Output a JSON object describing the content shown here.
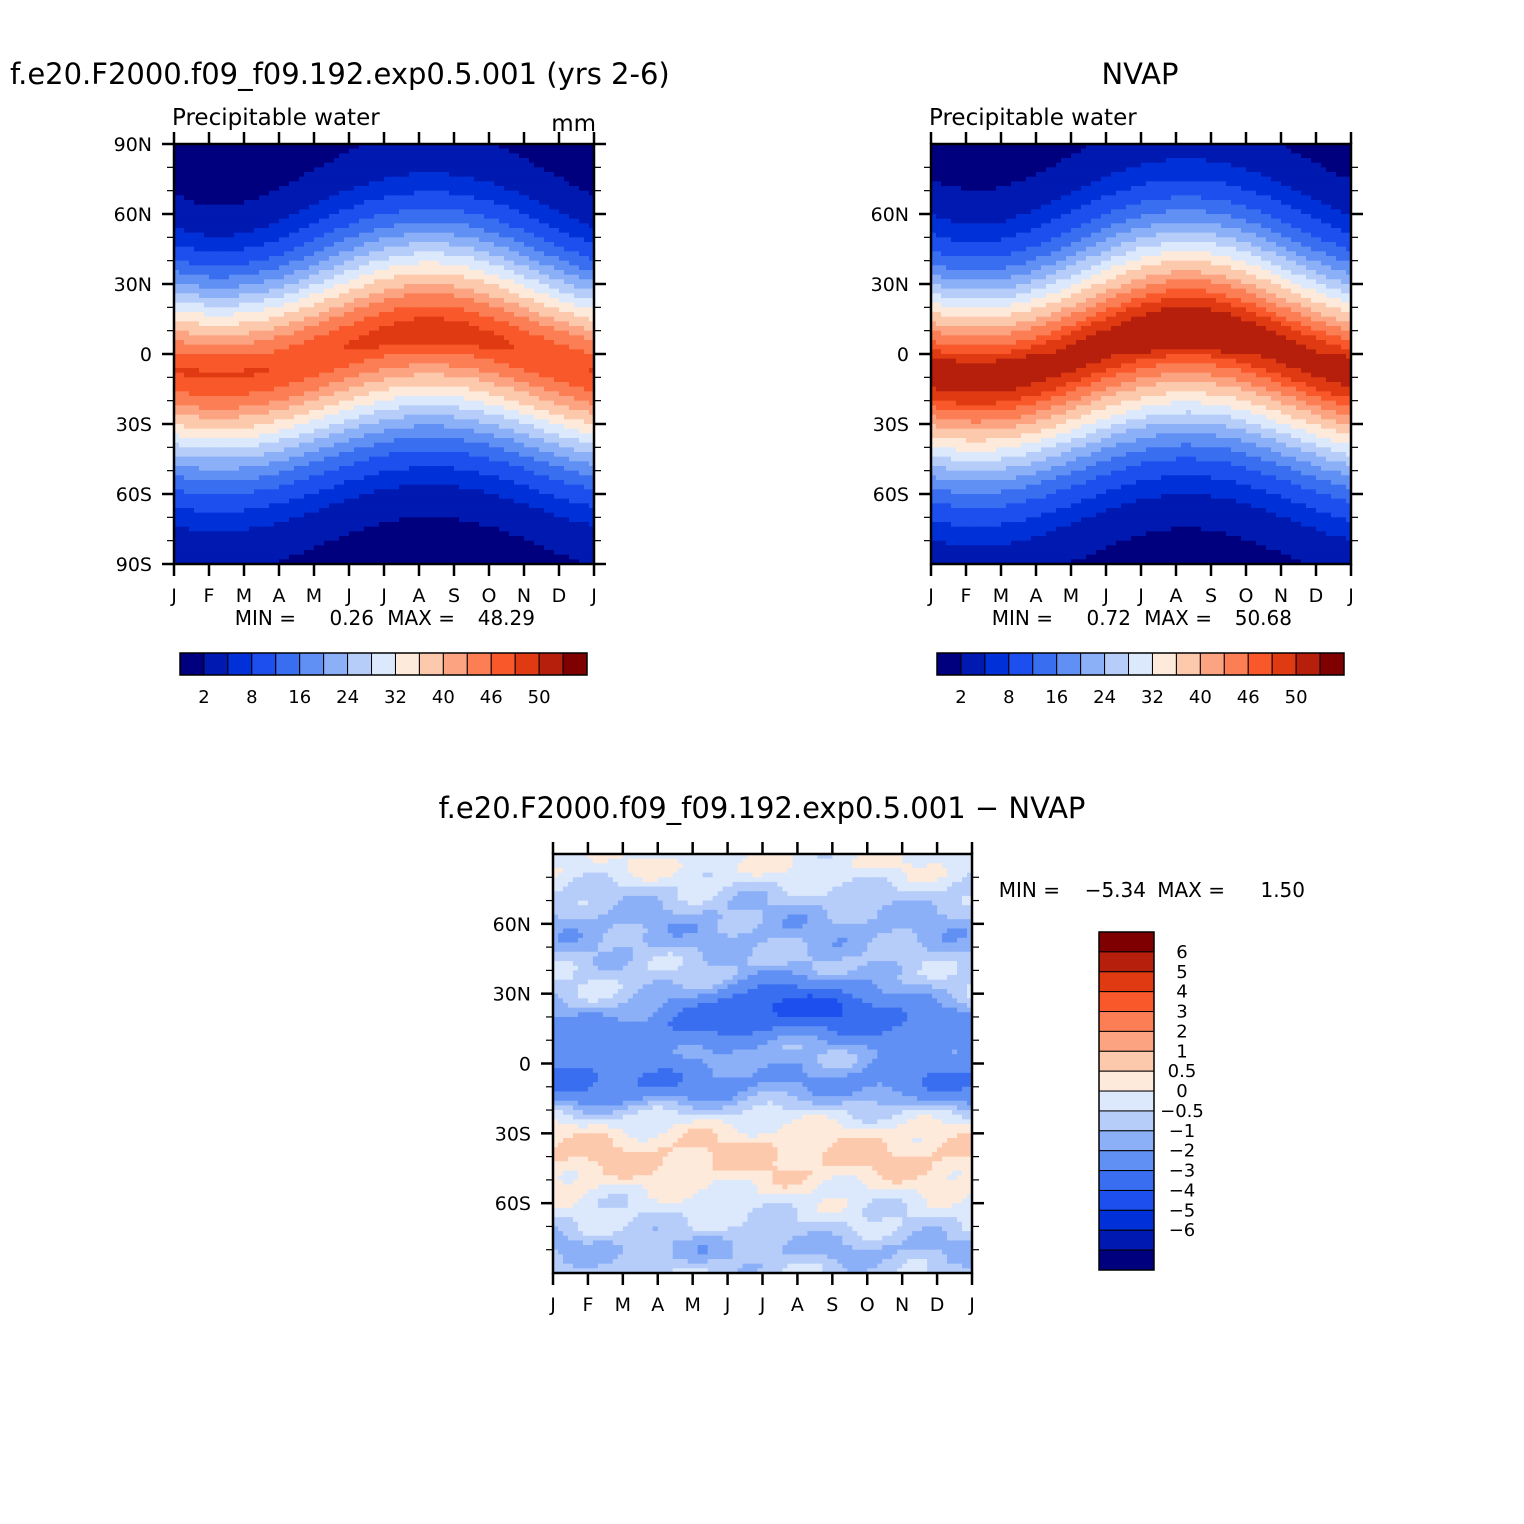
{
  "panels": {
    "model": {
      "title": "f.e20.F2000.f09_f09.192.exp0.5.001 (yrs 2-6)",
      "left_label": "Precipitable water",
      "units": "mm",
      "min_text": "MIN =",
      "min_value": "0.26",
      "max_text": "MAX =",
      "max_value": "48.29"
    },
    "obs": {
      "title": "NVAP",
      "left_label": "Precipitable water",
      "min_text": "MIN =",
      "min_value": "0.72",
      "max_text": "MAX =",
      "max_value": "50.68"
    },
    "diff": {
      "title": "f.e20.F2000.f09_f09.192.exp0.5.001 − NVAP",
      "min_text": "MIN =",
      "min_value": "−5.34",
      "max_text": "MAX =",
      "max_value": "1.50"
    }
  },
  "chart_data": [
    {
      "type": "heatmap",
      "name_ref": "model",
      "x_ticks": [
        "J",
        "F",
        "M",
        "A",
        "M",
        "J",
        "J",
        "A",
        "S",
        "O",
        "N",
        "D",
        "J"
      ],
      "y_ticks": [
        "90N",
        "60N",
        "30N",
        "0",
        "30S",
        "60S",
        "90S"
      ],
      "ylim": [
        -90,
        90
      ],
      "zmin": 0.26,
      "zmax": 48.29,
      "colorbar_labels": [
        "2",
        "8",
        "16",
        "24",
        "32",
        "40",
        "46",
        "50"
      ],
      "levels": [
        2,
        5,
        8,
        12,
        16,
        20,
        24,
        28,
        32,
        36,
        40,
        43,
        46,
        48,
        50
      ],
      "colors": [
        "#00007f",
        "#0019b0",
        "#0030d8",
        "#1c4fee",
        "#3a6ef0",
        "#6090f4",
        "#8cb0f7",
        "#b6cdfa",
        "#dce9fc",
        "#feeadb",
        "#fdc9ad",
        "#fca482",
        "#fb7e54",
        "#f8582a",
        "#e03a12",
        "#b61f0c",
        "#7f0000"
      ],
      "peak_month": 7.3,
      "shift": 9,
      "peak_value": 47,
      "width": 30
    },
    {
      "type": "heatmap",
      "name_ref": "obs",
      "x_ticks": [
        "J",
        "F",
        "M",
        "A",
        "M",
        "J",
        "J",
        "A",
        "S",
        "O",
        "N",
        "D",
        "J"
      ],
      "y_ticks": [
        "60N",
        "30N",
        "0",
        "30S",
        "60S"
      ],
      "ylim": [
        -90,
        90
      ],
      "zmin": 0.72,
      "zmax": 50.68,
      "colorbar_labels": [
        "2",
        "8",
        "16",
        "24",
        "32",
        "40",
        "46",
        "50"
      ],
      "peak_month": 7.3,
      "shift": 10,
      "peak_value": 50,
      "width": 32
    },
    {
      "type": "heatmap",
      "name_ref": "diff",
      "x_ticks": [
        "J",
        "F",
        "M",
        "A",
        "M",
        "J",
        "J",
        "A",
        "S",
        "O",
        "N",
        "D",
        "J"
      ],
      "y_ticks": [
        "60N",
        "30N",
        "0",
        "30S",
        "60S"
      ],
      "ylim": [
        -90,
        90
      ],
      "zmin": -5.34,
      "zmax": 1.5,
      "colorbar_labels": [
        "6",
        "5",
        "4",
        "3",
        "2",
        "1",
        "0.5",
        "0",
        "−0.5",
        "−1",
        "−2",
        "−3",
        "−4",
        "−5",
        "−6"
      ],
      "levels": [
        -6,
        -5,
        -4,
        -3,
        -2,
        -1,
        -0.5,
        0,
        0.5,
        1,
        2,
        3,
        4,
        5,
        6
      ],
      "colors": [
        "#00007f",
        "#0019b0",
        "#0030d8",
        "#1c4fee",
        "#3a6ef0",
        "#6090f4",
        "#8cb0f7",
        "#b6cdfa",
        "#dce9fc",
        "#feeadb",
        "#fdc9ad",
        "#fca482",
        "#fb7e54",
        "#f8582a",
        "#e03a12",
        "#b61f0c",
        "#7f0000"
      ]
    }
  ]
}
